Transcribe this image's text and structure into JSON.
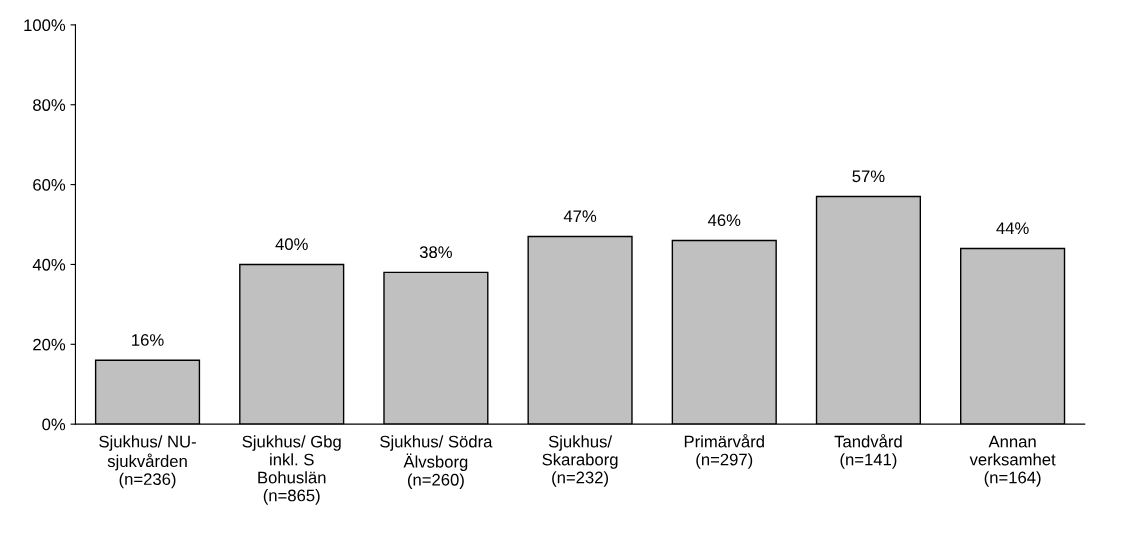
{
  "chart_data": {
    "type": "bar",
    "categories": [
      "Sjukhus/ NU-\nsjukvården\n(n=236)",
      "Sjukhus/ Gbg\ninkl. S\nBohuslän\n(n=865)",
      "Sjukhus/ Södra\nÄlvsborg\n(n=260)",
      "Sjukhus/\nSkaraborg\n(n=232)",
      "Primärvård\n(n=297)",
      "Tandvård\n(n=141)",
      "Annan\nverksamhet\n(n=164)"
    ],
    "values": [
      16,
      40,
      38,
      47,
      46,
      57,
      44
    ],
    "value_labels": [
      "16%",
      "40%",
      "38%",
      "47%",
      "46%",
      "57%",
      "44%"
    ],
    "color": "#c0c0c0",
    "ylim": [
      0,
      100
    ],
    "yticks": [
      {
        "value": 0,
        "label": "0%"
      },
      {
        "value": 20,
        "label": "20%"
      },
      {
        "value": 40,
        "label": "40%"
      },
      {
        "value": 60,
        "label": "60%"
      },
      {
        "value": 80,
        "label": "80%"
      },
      {
        "value": 100,
        "label": "100%"
      }
    ],
    "grid": false,
    "legend": false
  }
}
